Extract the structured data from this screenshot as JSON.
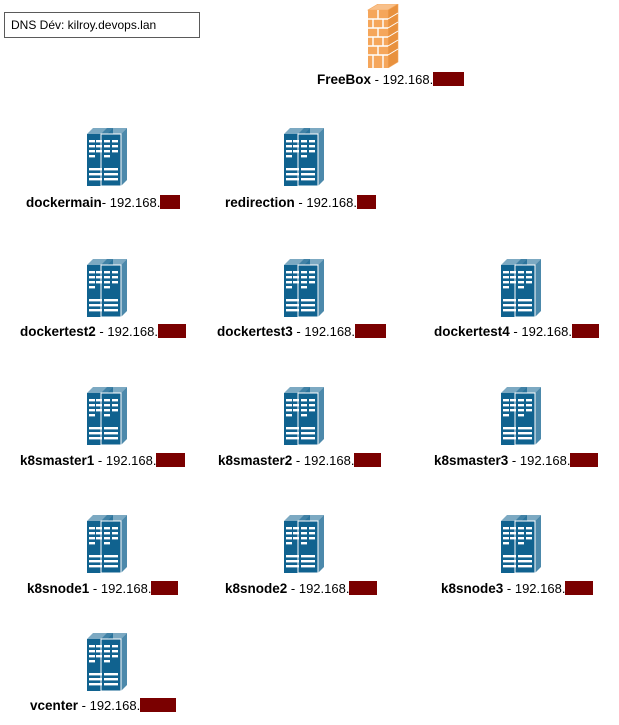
{
  "dns_label": "DNS Dév: kilroy.devops.lan",
  "firewall": {
    "name": "FreeBox",
    "sep": " - ",
    "ip": "192.168.",
    "icon": "firewall-icon"
  },
  "server_icon": "server-rack-icon",
  "colors": {
    "server": "#10628f",
    "firewall": "#f5a65b",
    "redaction": "#7a0000"
  },
  "servers": [
    {
      "name": "dockermain",
      "sep": "- ",
      "ip": "192.168."
    },
    {
      "name": "redirection",
      "sep": " - ",
      "ip": "192.168."
    },
    {
      "name": "dockertest2",
      "sep": " - ",
      "ip": "192.168."
    },
    {
      "name": "dockertest3",
      "sep": " - ",
      "ip": "192.168."
    },
    {
      "name": "dockertest4",
      "sep": " - ",
      "ip": "192.168."
    },
    {
      "name": "k8smaster1",
      "sep": " - ",
      "ip": "192.168."
    },
    {
      "name": "k8smaster2",
      "sep": " - ",
      "ip": "192.168."
    },
    {
      "name": "k8smaster3",
      "sep": " - ",
      "ip": "192.168."
    },
    {
      "name": "k8snode1",
      "sep": " - ",
      "ip": "192.168."
    },
    {
      "name": "k8snode2",
      "sep": " - ",
      "ip": "192.168."
    },
    {
      "name": "k8snode3",
      "sep": " - ",
      "ip": "192.168."
    },
    {
      "name": "vcenter",
      "sep": " - ",
      "ip": "192.168."
    }
  ]
}
